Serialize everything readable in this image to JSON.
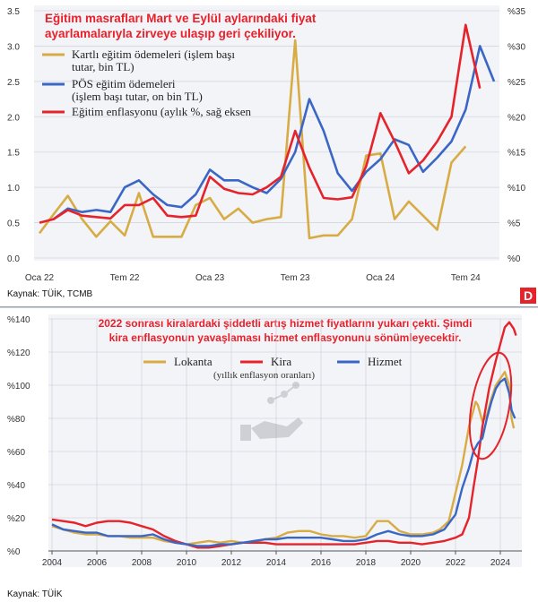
{
  "source_badge": "D",
  "chart_data": [
    {
      "type": "line",
      "title_lines": [
        "Eğitim masrafları Mart ve Eylül aylarındaki fiyat",
        "ayarlamalarıyla zirveye ulaşıp geri çekiliyor."
      ],
      "source": "Kaynak: TÜİK, TCMB",
      "x_labels": [
        "Oca 22",
        "Tem 22",
        "Oca 23",
        "Tem 23",
        "Oca 24",
        "Tem 24"
      ],
      "left_axis": {
        "min": 0,
        "max": 3.5,
        "ticks": [
          0,
          0.5,
          1.0,
          1.5,
          2.0,
          2.5,
          3.0,
          3.5
        ],
        "tick_labels": [
          "0.0",
          "0.5",
          "1.0",
          "1.5",
          "2.0",
          "2.5",
          "3.0",
          "3.5"
        ]
      },
      "right_axis": {
        "min": 0,
        "max": 35,
        "ticks": [
          0,
          5,
          10,
          15,
          20,
          25,
          30,
          35
        ],
        "tick_labels": [
          "%0",
          "%5",
          "%10",
          "%15",
          "%20",
          "%25",
          "%30",
          "%35"
        ]
      },
      "series": [
        {
          "name": "Kartlı eğitim ödemeleri (işlem başı tutar, bin TL)",
          "legend_lines": [
            "Kartlı eğitim ödemeleri (işlem başı",
            "tutar, bin TL)"
          ],
          "color": "#d8ac45",
          "axis": "left",
          "t_start": 0,
          "values": [
            0.35,
            0.62,
            0.88,
            0.55,
            0.3,
            0.52,
            0.32,
            0.92,
            0.3,
            0.3,
            0.3,
            0.75,
            0.85,
            0.55,
            0.7,
            0.5,
            0.55,
            0.58,
            3.08,
            0.28,
            0.32,
            0.32,
            0.55,
            1.45,
            1.48,
            0.55,
            0.8,
            0.6,
            0.4,
            1.35,
            1.58
          ]
        },
        {
          "name": "PÖS eğitim ödemeleri (işlem başı tutar, on bin TL)",
          "legend_lines": [
            "PÖS eğitim ödemeleri",
            "(işlem başı tutar, on bin TL)"
          ],
          "color": "#3a66c5",
          "axis": "left",
          "t_start": 1,
          "values": [
            0.55,
            0.7,
            0.65,
            0.68,
            0.65,
            1.0,
            1.1,
            0.9,
            0.75,
            0.72,
            0.9,
            1.25,
            1.1,
            1.1,
            1.0,
            0.92,
            1.12,
            1.5,
            2.25,
            1.8,
            1.2,
            0.95,
            1.22,
            1.4,
            1.68,
            1.6,
            1.22,
            1.42,
            1.65,
            2.1,
            3.0,
            2.5
          ]
        },
        {
          "name": "Eğitim enflasyonu (aylık %, sağ eksen)",
          "legend_lines": [
            "Eğitim enflasyonu (aylık %, sağ eksen"
          ],
          "color": "#e5232b",
          "axis": "right",
          "t_start": 0,
          "values": [
            5.0,
            5.5,
            6.8,
            6.0,
            5.8,
            5.6,
            7.5,
            7.5,
            8.5,
            6.0,
            5.8,
            6.0,
            11.5,
            9.8,
            9.2,
            9.0,
            10.0,
            11.5,
            18.0,
            12.8,
            8.5,
            8.3,
            8.6,
            13.0,
            20.5,
            16.5,
            12.0,
            13.8,
            16.5,
            20.0,
            33.0,
            24.0
          ]
        }
      ]
    },
    {
      "type": "line",
      "title_lines": [
        "2022 sonrası kiralardaki şiddetli artış hizmet fiyatlarını yukarı çekti. Şimdi",
        "kira enflasyonun yavaşlaması hizmet enflasyonunu sönümleyecektir."
      ],
      "subtitle": "(yıllık enflasyon oranları)",
      "source": "Kaynak: TÜİK",
      "x": {
        "min": 2004,
        "max": 2024.8,
        "ticks": [
          2004,
          2006,
          2008,
          2010,
          2012,
          2014,
          2016,
          2018,
          2020,
          2022,
          2024
        ]
      },
      "y_axis": {
        "min": 0,
        "max": 140,
        "ticks": [
          0,
          20,
          40,
          60,
          80,
          100,
          120,
          140
        ],
        "tick_labels": [
          "%0",
          "%20",
          "%40",
          "%60",
          "%80",
          "%100",
          "%120",
          "%140"
        ]
      },
      "series": [
        {
          "name": "Lokanta",
          "color": "#d8ac45",
          "points": [
            [
              2004,
              15
            ],
            [
              2004.5,
              13
            ],
            [
              2005,
              11
            ],
            [
              2005.5,
              10
            ],
            [
              2006,
              10
            ],
            [
              2006.5,
              9
            ],
            [
              2007,
              9
            ],
            [
              2007.5,
              8
            ],
            [
              2008,
              8
            ],
            [
              2008.5,
              8
            ],
            [
              2009,
              6
            ],
            [
              2009.5,
              5
            ],
            [
              2010,
              4
            ],
            [
              2010.5,
              5
            ],
            [
              2011,
              6
            ],
            [
              2011.5,
              5
            ],
            [
              2012,
              6
            ],
            [
              2012.5,
              5
            ],
            [
              2013,
              5
            ],
            [
              2013.5,
              7
            ],
            [
              2014,
              8
            ],
            [
              2014.5,
              11
            ],
            [
              2015,
              12
            ],
            [
              2015.5,
              12
            ],
            [
              2016,
              10
            ],
            [
              2016.5,
              9
            ],
            [
              2017,
              9
            ],
            [
              2017.5,
              8
            ],
            [
              2018,
              9
            ],
            [
              2018.5,
              18
            ],
            [
              2019,
              18
            ],
            [
              2019.5,
              12
            ],
            [
              2020,
              10
            ],
            [
              2020.5,
              10
            ],
            [
              2021,
              11
            ],
            [
              2021.3,
              13
            ],
            [
              2021.7,
              18
            ],
            [
              2022,
              35
            ],
            [
              2022.3,
              52
            ],
            [
              2022.6,
              75
            ],
            [
              2022.8,
              85
            ],
            [
              2022.9,
              90
            ],
            [
              2023,
              88
            ],
            [
              2023.2,
              78
            ],
            [
              2023.4,
              82
            ],
            [
              2023.6,
              92
            ],
            [
              2023.8,
              100
            ],
            [
              2024,
              104
            ],
            [
              2024.2,
              108
            ],
            [
              2024.4,
              100
            ],
            [
              2024.5,
              80
            ],
            [
              2024.6,
              74
            ]
          ]
        },
        {
          "name": "Kira",
          "color": "#e5232b",
          "points": [
            [
              2004,
              19
            ],
            [
              2004.5,
              18
            ],
            [
              2005,
              17
            ],
            [
              2005.5,
              15
            ],
            [
              2006,
              17
            ],
            [
              2006.5,
              18
            ],
            [
              2007,
              18
            ],
            [
              2007.5,
              17
            ],
            [
              2008,
              15
            ],
            [
              2008.5,
              13
            ],
            [
              2009,
              9
            ],
            [
              2009.5,
              6
            ],
            [
              2010,
              4
            ],
            [
              2010.5,
              2
            ],
            [
              2011,
              2
            ],
            [
              2011.5,
              3
            ],
            [
              2012,
              4
            ],
            [
              2012.5,
              5
            ],
            [
              2013,
              5
            ],
            [
              2013.5,
              5
            ],
            [
              2014,
              4
            ],
            [
              2014.5,
              4
            ],
            [
              2015,
              4
            ],
            [
              2015.5,
              4
            ],
            [
              2016,
              4
            ],
            [
              2016.5,
              4
            ],
            [
              2017,
              4
            ],
            [
              2017.5,
              4
            ],
            [
              2018,
              5
            ],
            [
              2018.5,
              6
            ],
            [
              2019,
              6
            ],
            [
              2019.5,
              5
            ],
            [
              2020,
              5
            ],
            [
              2020.5,
              4
            ],
            [
              2021,
              5
            ],
            [
              2021.5,
              6
            ],
            [
              2022,
              8
            ],
            [
              2022.3,
              10
            ],
            [
              2022.6,
              20
            ],
            [
              2022.8,
              38
            ],
            [
              2023,
              55
            ],
            [
              2023.2,
              75
            ],
            [
              2023.5,
              98
            ],
            [
              2023.8,
              115
            ],
            [
              2024,
              125
            ],
            [
              2024.2,
              135
            ],
            [
              2024.4,
              138
            ],
            [
              2024.6,
              134
            ],
            [
              2024.7,
              130
            ]
          ]
        },
        {
          "name": "Hizmet",
          "color": "#3a66c5",
          "points": [
            [
              2004,
              16
            ],
            [
              2004.5,
              13
            ],
            [
              2005,
              12
            ],
            [
              2005.5,
              11
            ],
            [
              2006,
              11
            ],
            [
              2006.5,
              9
            ],
            [
              2007,
              9
            ],
            [
              2007.5,
              9
            ],
            [
              2008,
              9
            ],
            [
              2008.5,
              10
            ],
            [
              2009,
              7
            ],
            [
              2009.5,
              5
            ],
            [
              2010,
              4
            ],
            [
              2010.5,
              3
            ],
            [
              2011,
              3
            ],
            [
              2011.5,
              4
            ],
            [
              2012,
              4
            ],
            [
              2012.5,
              5
            ],
            [
              2013,
              6
            ],
            [
              2013.5,
              7
            ],
            [
              2014,
              7
            ],
            [
              2014.5,
              8
            ],
            [
              2015,
              8
            ],
            [
              2015.5,
              8
            ],
            [
              2016,
              8
            ],
            [
              2016.5,
              7
            ],
            [
              2017,
              6
            ],
            [
              2017.5,
              6
            ],
            [
              2018,
              7
            ],
            [
              2018.5,
              10
            ],
            [
              2019,
              12
            ],
            [
              2019.5,
              10
            ],
            [
              2020,
              9
            ],
            [
              2020.5,
              9
            ],
            [
              2021,
              10
            ],
            [
              2021.5,
              13
            ],
            [
              2022,
              22
            ],
            [
              2022.3,
              38
            ],
            [
              2022.6,
              50
            ],
            [
              2022.8,
              60
            ],
            [
              2023,
              65
            ],
            [
              2023.2,
              68
            ],
            [
              2023.4,
              80
            ],
            [
              2023.6,
              90
            ],
            [
              2023.8,
              98
            ],
            [
              2024,
              102
            ],
            [
              2024.2,
              104
            ],
            [
              2024.4,
              95
            ],
            [
              2024.5,
              85
            ],
            [
              2024.65,
              80
            ]
          ]
        }
      ]
    }
  ]
}
